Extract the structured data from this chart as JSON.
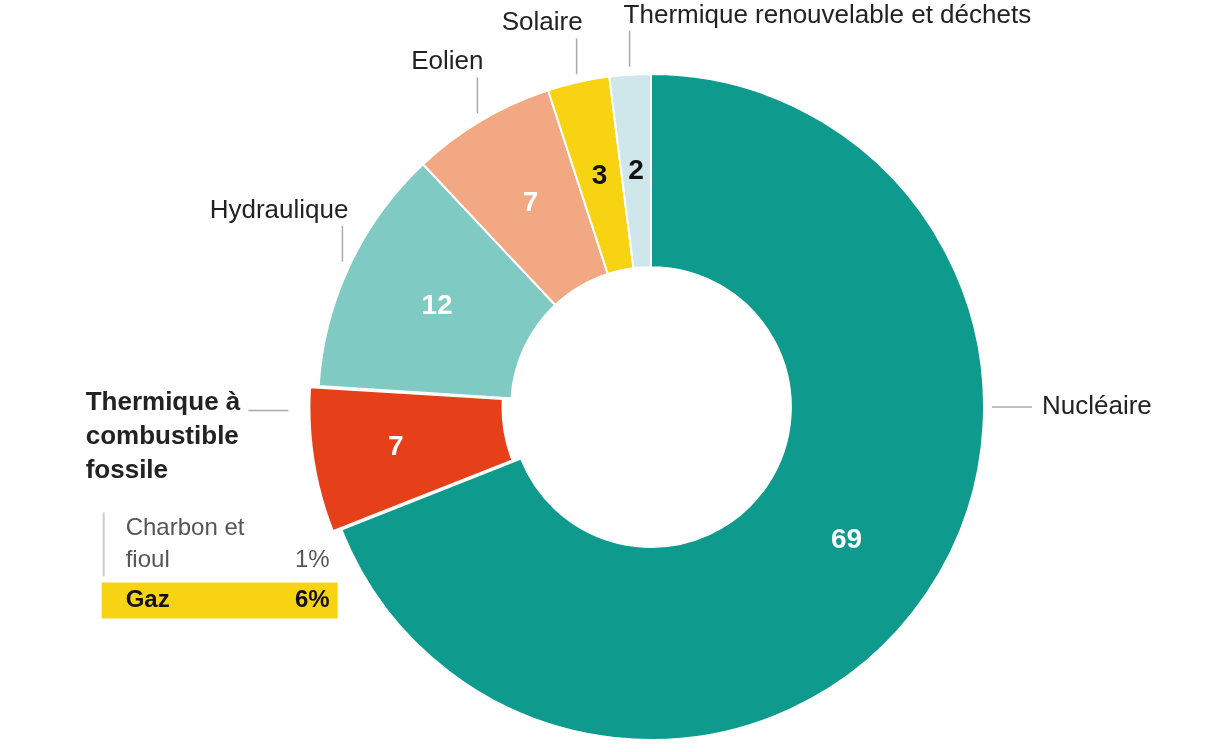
{
  "chart_data": {
    "type": "donut",
    "categories": [
      "Nucléaire",
      "Thermique à combustible fossile",
      "Hydraulique",
      "Eolien",
      "Solaire",
      "Thermique renouvelable et déchets"
    ],
    "values": [
      69,
      7,
      12,
      7,
      3,
      2
    ],
    "colors": [
      "#0e9a8c",
      "#e5401a",
      "#7fcac2",
      "#f2a882",
      "#f8d313",
      "#cfe7ea"
    ],
    "data_labels": true,
    "legend": false,
    "annotations": [
      "Charbon et fioul 1%",
      "Gaz 6%"
    ]
  }
}
